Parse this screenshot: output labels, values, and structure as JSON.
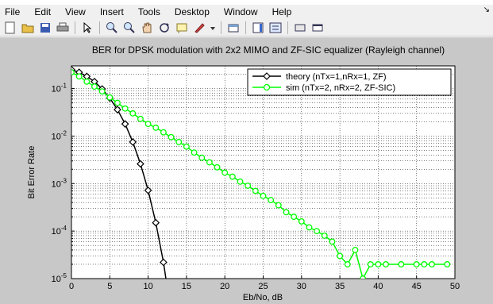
{
  "menubar": {
    "items": [
      "File",
      "Edit",
      "View",
      "Insert",
      "Tools",
      "Desktop",
      "Window",
      "Help"
    ],
    "end_glyph": "↘"
  },
  "toolbar": {
    "icons": [
      "new-figure-icon",
      "open-file-icon",
      "save-icon",
      "print-icon",
      "separator",
      "pointer-icon",
      "separator",
      "zoom-in-icon",
      "zoom-out-icon",
      "pan-hand-icon",
      "rotate-3d-icon",
      "data-cursor-icon",
      "brush-icon",
      "dropdown-icon",
      "separator",
      "link-plot-icon",
      "separator",
      "colorbar-icon",
      "legend-icon",
      "separator",
      "hide-plot-tools-icon",
      "show-plot-tools-icon"
    ]
  },
  "colors": {
    "figure_background": "#c8c8c8",
    "axes_background": "#ffffff",
    "theory": "#000000",
    "sim": "#00ff00"
  },
  "chart_data": {
    "type": "line",
    "title": "BER for DPSK modulation with 2x2 MIMO and ZF-SIC equalizer (Rayleigh channel)",
    "xlabel": "Eb/No, dB",
    "ylabel": "Bit Error Rate",
    "xlim": [
      0,
      50
    ],
    "ylim": [
      1e-05,
      0.3
    ],
    "yscale": "log",
    "grid": true,
    "legend_position": "top-right",
    "x_ticks": [
      0,
      5,
      10,
      15,
      20,
      25,
      30,
      35,
      40,
      45,
      50
    ],
    "x_tick_labels": [
      "0",
      "5",
      "10",
      "15",
      "20",
      "25",
      "30",
      "35",
      "40",
      "45",
      "50"
    ],
    "y_ticks": [
      0.1,
      0.01,
      0.001,
      0.0001,
      1e-05
    ],
    "y_tick_labels": [
      {
        "base": "10",
        "exp": "-1"
      },
      {
        "base": "10",
        "exp": "-2"
      },
      {
        "base": "10",
        "exp": "-3"
      },
      {
        "base": "10",
        "exp": "-4"
      },
      {
        "base": "10",
        "exp": "-5"
      }
    ],
    "series": [
      {
        "name": "theory (nTx=1,nRx=1, ZF)",
        "color": "#000000",
        "marker": "diamond",
        "x": [
          0,
          1,
          2,
          3,
          4,
          5,
          6,
          7,
          8,
          9,
          10,
          11,
          12,
          13
        ],
        "y": [
          0.25,
          0.22,
          0.18,
          0.14,
          0.098,
          0.063,
          0.036,
          0.018,
          0.0075,
          0.0026,
          0.00072,
          0.00015,
          2.2e-05,
          1.8e-06
        ]
      },
      {
        "name": "sim (nTx=2, nRx=2, ZF-SIC)",
        "color": "#00ff00",
        "marker": "circle",
        "x": [
          0,
          1,
          2,
          3,
          4,
          5,
          6,
          7,
          8,
          9,
          10,
          11,
          12,
          13,
          14,
          15,
          16,
          17,
          18,
          19,
          20,
          21,
          22,
          23,
          24,
          25,
          26,
          27,
          28,
          29,
          30,
          31,
          32,
          33,
          34,
          35,
          36,
          37,
          38,
          39,
          40,
          41,
          43,
          45,
          46,
          47,
          49
        ],
        "y": [
          0.22,
          0.18,
          0.14,
          0.11,
          0.087,
          0.065,
          0.05,
          0.038,
          0.03,
          0.023,
          0.018,
          0.015,
          0.012,
          0.0095,
          0.0075,
          0.006,
          0.0045,
          0.0035,
          0.0028,
          0.0022,
          0.0017,
          0.0014,
          0.0011,
          0.0009,
          0.0007,
          0.00055,
          0.00045,
          0.00035,
          0.00025,
          0.0002,
          0.00016,
          0.00012,
          0.0001,
          8e-05,
          6e-05,
          3e-05,
          2e-05,
          4e-05,
          1e-05,
          2e-05,
          2e-05,
          2e-05,
          2e-05,
          2e-05,
          2e-05,
          2e-05,
          2e-05
        ]
      }
    ]
  }
}
